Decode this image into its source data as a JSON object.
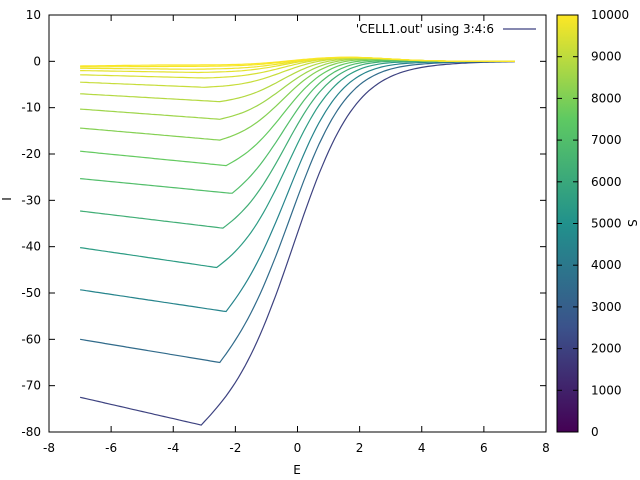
{
  "chart_data": {
    "type": "line",
    "title": "",
    "xlabel": "E",
    "ylabel": "I",
    "xlim": [
      -8,
      8
    ],
    "ylim": [
      -80,
      10
    ],
    "xticks": [
      -8,
      -6,
      -4,
      -2,
      0,
      2,
      4,
      6,
      8
    ],
    "yticks": [
      10,
      0,
      -10,
      -20,
      -30,
      -40,
      -50,
      -60,
      -70,
      -80
    ],
    "grid": false,
    "legend": {
      "entry": "'CELL1.out' using 3:4:6",
      "placement": "top-right"
    },
    "colorbar": {
      "label": "S",
      "range": [
        0,
        10000
      ],
      "ticks": [
        0,
        1000,
        2000,
        3000,
        4000,
        5000,
        6000,
        7000,
        8000,
        9000,
        10000
      ],
      "palette": [
        "#440154",
        "#3b528b",
        "#21918c",
        "#5ec962",
        "#fde725"
      ]
    },
    "series": [
      {
        "s": 2000,
        "start_y": -72.5,
        "valley_x": -3.1,
        "valley_y": -78.5
      },
      {
        "s": 3500,
        "start_y": -60.0,
        "valley_x": -2.5,
        "valley_y": -65.0
      },
      {
        "s": 4500,
        "start_y": -49.3,
        "valley_x": -2.3,
        "valley_y": -54.0
      },
      {
        "s": 5500,
        "start_y": -40.2,
        "valley_x": -2.6,
        "valley_y": -44.5
      },
      {
        "s": 6300,
        "start_y": -32.3,
        "valley_x": -2.4,
        "valley_y": -36.0
      },
      {
        "s": 7000,
        "start_y": -25.3,
        "valley_x": -2.1,
        "valley_y": -28.5
      },
      {
        "s": 7600,
        "start_y": -19.4,
        "valley_x": -2.3,
        "valley_y": -22.5
      },
      {
        "s": 8100,
        "start_y": -14.4,
        "valley_x": -2.5,
        "valley_y": -17.0
      },
      {
        "s": 8500,
        "start_y": -10.3,
        "valley_x": -2.5,
        "valley_y": -12.5
      },
      {
        "s": 8850,
        "start_y": -7.0,
        "valley_x": -2.5,
        "valley_y": -8.7
      },
      {
        "s": 9150,
        "start_y": -4.5,
        "valley_x": -3.0,
        "valley_y": -5.6
      },
      {
        "s": 9400,
        "start_y": -2.9,
        "valley_x": -3.0,
        "valley_y": -3.6
      },
      {
        "s": 9600,
        "start_y": -2.0,
        "valley_x": -3.2,
        "valley_y": -2.4
      },
      {
        "s": 9750,
        "start_y": -1.5,
        "valley_x": -3.5,
        "valley_y": -1.7
      },
      {
        "s": 9880,
        "start_y": -1.2,
        "valley_x": -4.0,
        "valley_y": -1.1
      },
      {
        "s": 9960,
        "start_y": -1.0,
        "valley_x": -4.5,
        "valley_y": -0.8
      }
    ]
  }
}
